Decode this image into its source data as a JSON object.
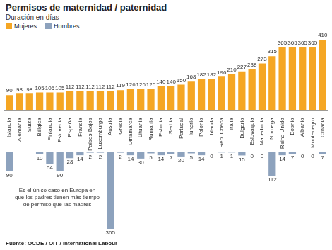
{
  "chart_data": {
    "type": "bar",
    "title": "Permisos de maternidad / paternidad",
    "subtitle": "Duración en días",
    "source": "Fuente: OCDE / OIT / International Labour",
    "annotation": "Es el único caso en Europa en que los padres tienen más tiempo de permiso que las madres",
    "categories": [
      "Islandia",
      "Alemania",
      "Suiza",
      "Bélgica",
      "Finlandia",
      "Eslovenia",
      "España",
      "Francia",
      "Países Bajos",
      "Luxemburgo",
      "Austria",
      "Grecia",
      "Dinamarca",
      "Lituania",
      "Rumanía",
      "Estonia",
      "Serbia",
      "Portugal",
      "Hungría",
      "Polonia",
      "Irlanda",
      "Rep. Checa",
      "Italia",
      "Bulgaria",
      "Eslovaquia",
      "Macedonia",
      "Noruega",
      "Reino Unido",
      "Bosnia",
      "Albania",
      "Montenegro",
      "Croacia"
    ],
    "series": [
      {
        "name": "Mujeres",
        "color": "#f5a623",
        "values": [
          90,
          98,
          98,
          105,
          105,
          105,
          112,
          112,
          112,
          112,
          112,
          119,
          126,
          126,
          126,
          140,
          140,
          150,
          168,
          182,
          182,
          196,
          210,
          227,
          238,
          273,
          315,
          365,
          365,
          365,
          365,
          410
        ]
      },
      {
        "name": "Hombres",
        "color": "#8da2bd",
        "axis": "y2",
        "values": [
          90,
          null,
          null,
          10,
          54,
          90,
          28,
          14,
          2,
          2,
          365,
          2,
          14,
          30,
          5,
          14,
          7,
          20,
          5,
          14,
          0,
          1,
          1,
          15,
          0,
          0,
          112,
          14,
          7,
          0,
          0,
          7
        ]
      }
    ],
    "ylim": [
      0,
      410
    ],
    "y2lim": [
      0,
      365
    ],
    "grid": false,
    "data_labels": true,
    "tick_labels": "x"
  }
}
